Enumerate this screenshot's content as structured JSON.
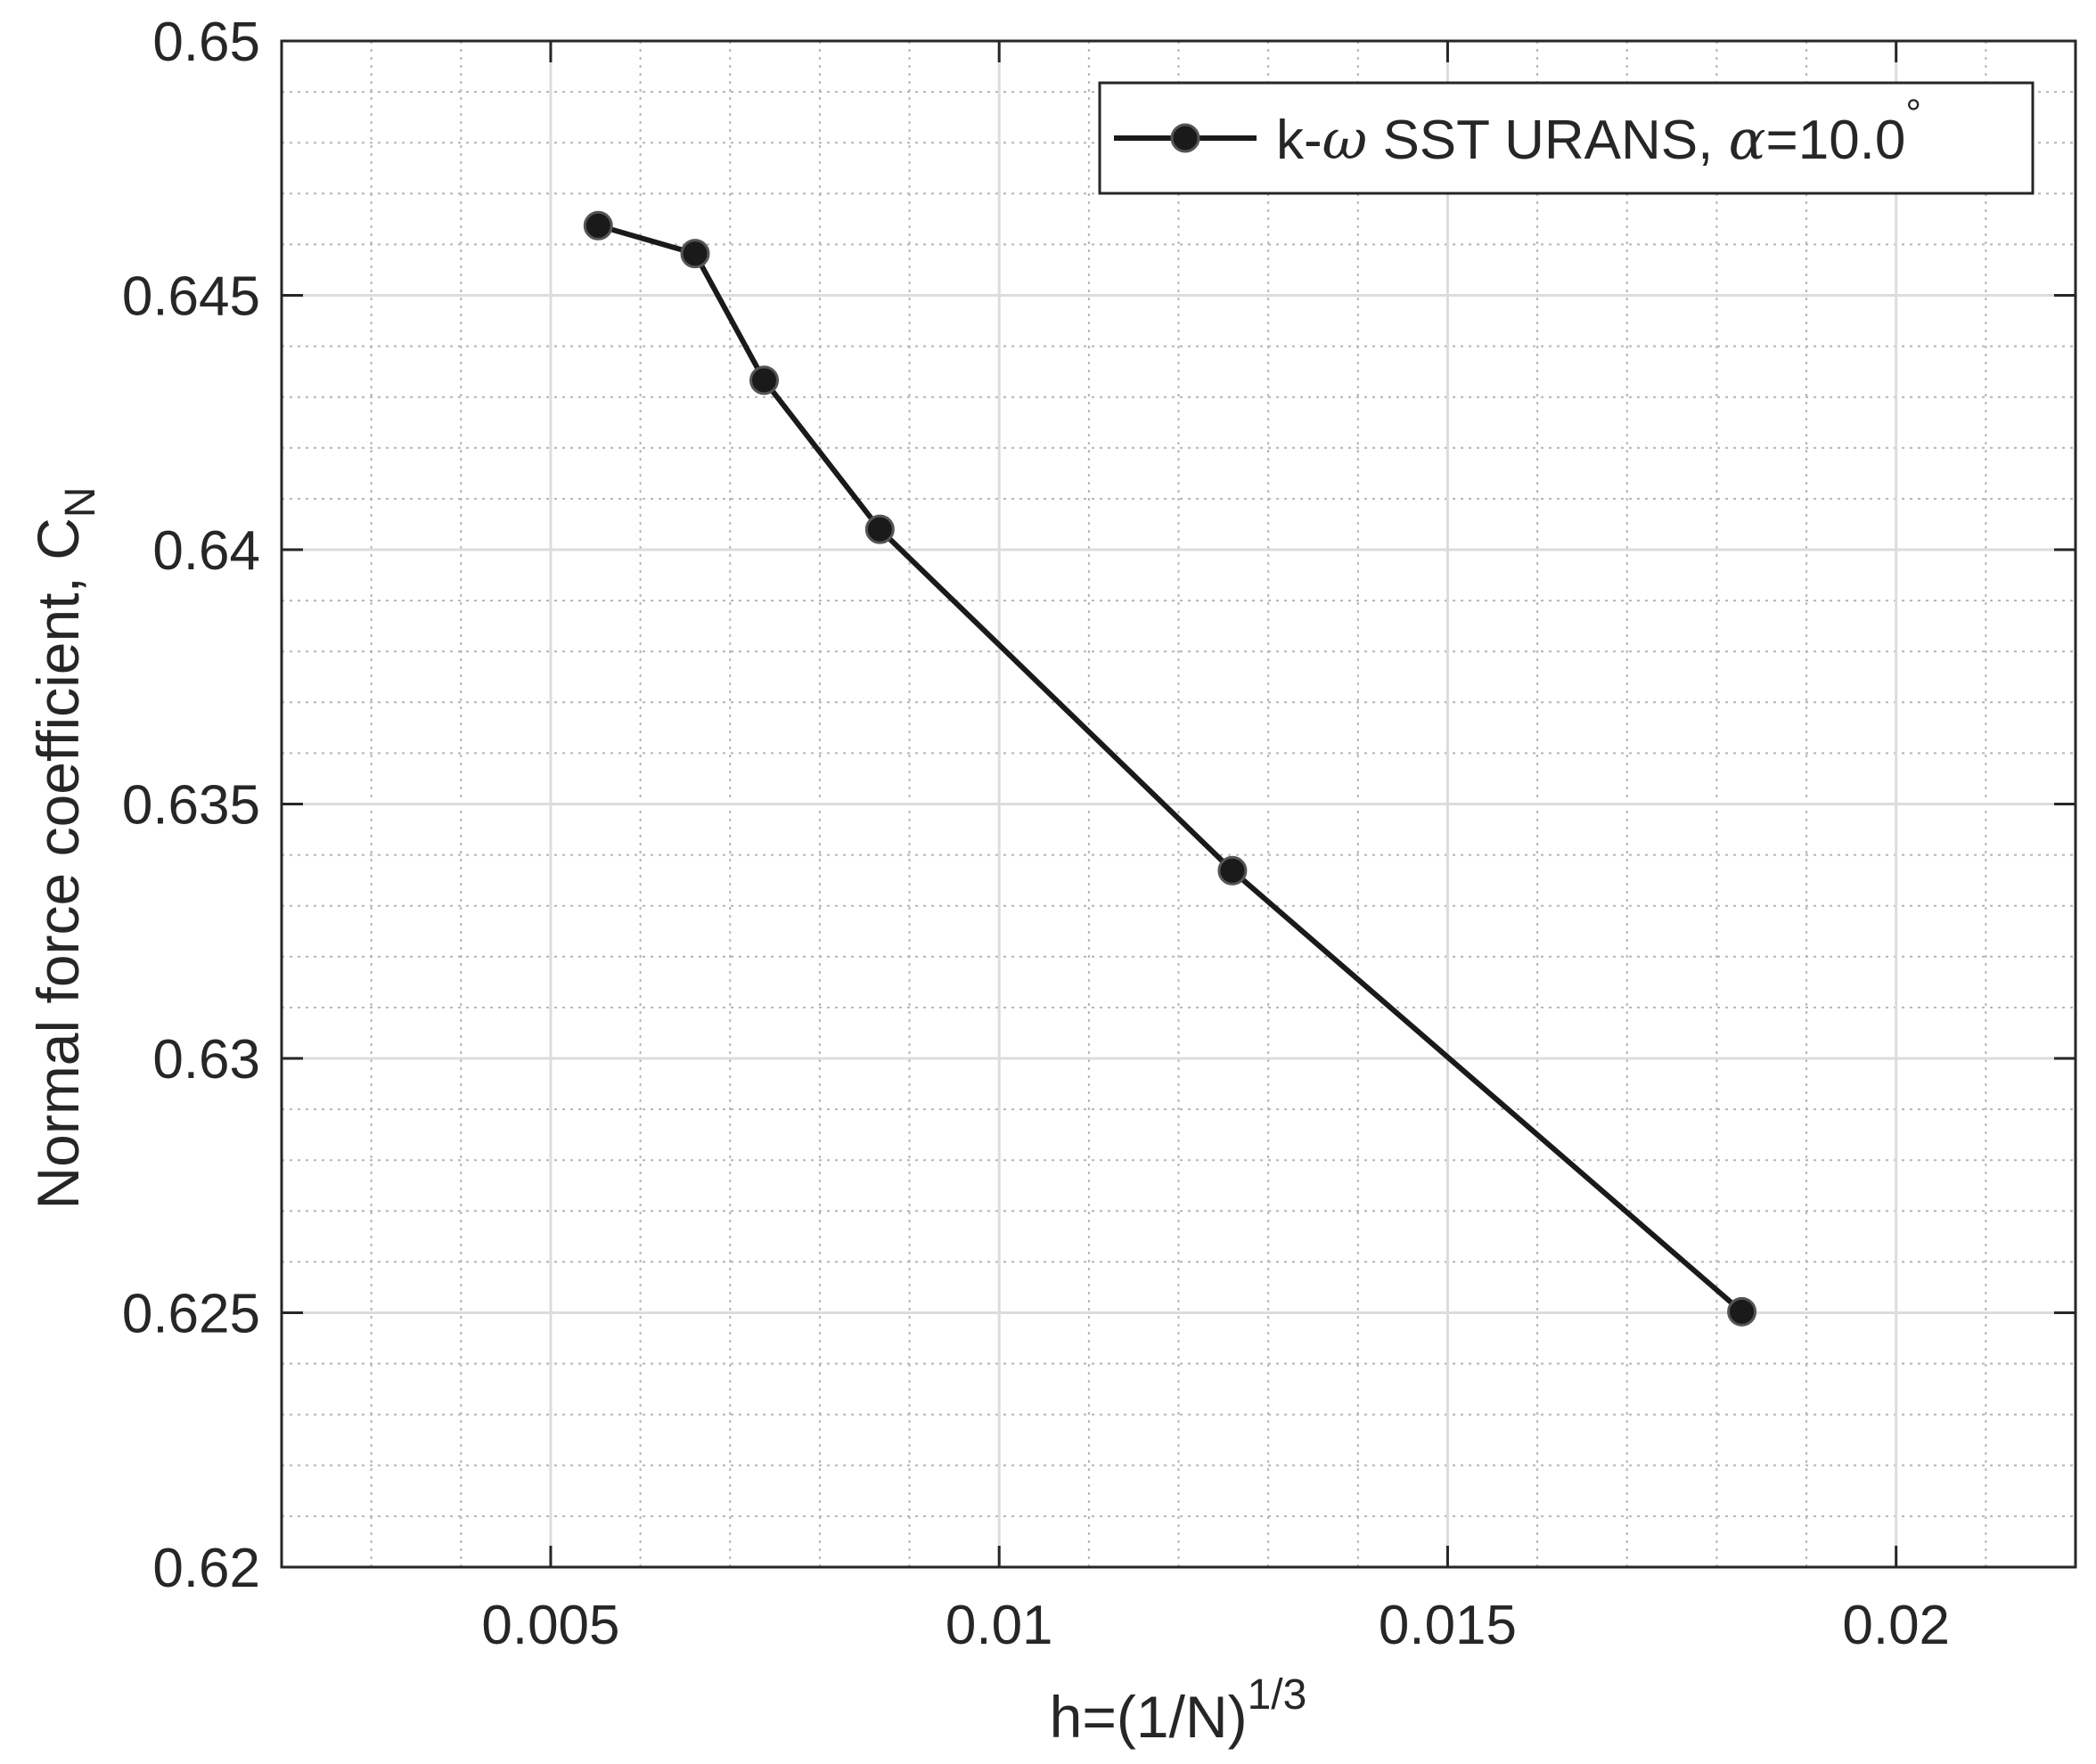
{
  "chart_data": {
    "type": "line",
    "title": "",
    "xlabel": {
      "base": "h=(1/N)",
      "superscript": "1/3"
    },
    "ylabel": {
      "base": "Normal force coefficient, C",
      "subscript": "N"
    },
    "xlim": [
      0.002,
      0.022
    ],
    "ylim": [
      0.62,
      0.65
    ],
    "xticks": [
      0.005,
      0.01,
      0.015,
      0.02
    ],
    "xtick_labels": [
      "0.005",
      "0.01",
      "0.015",
      "0.02"
    ],
    "yticks": [
      0.62,
      0.625,
      0.63,
      0.635,
      0.64,
      0.645,
      0.65
    ],
    "ytick_labels": [
      "0.62",
      "0.625",
      "0.63",
      "0.635",
      "0.64",
      "0.645",
      "0.65"
    ],
    "grid": true,
    "minor_grid": true,
    "legend_position": "top-right",
    "series": [
      {
        "legend": {
          "prefix": "k-",
          "omega": "ω",
          "middle": " SST URANS, ",
          "alpha": "α",
          "suffix": "=10.0",
          "degree": "°"
        },
        "color": "#1a1a1a",
        "marker": "circle",
        "x": [
          0.00553,
          0.00661,
          0.00738,
          0.00867,
          0.0126,
          0.01828
        ],
        "y": [
          0.64637,
          0.64582,
          0.64333,
          0.6404,
          0.63369,
          0.62502
        ]
      }
    ]
  }
}
